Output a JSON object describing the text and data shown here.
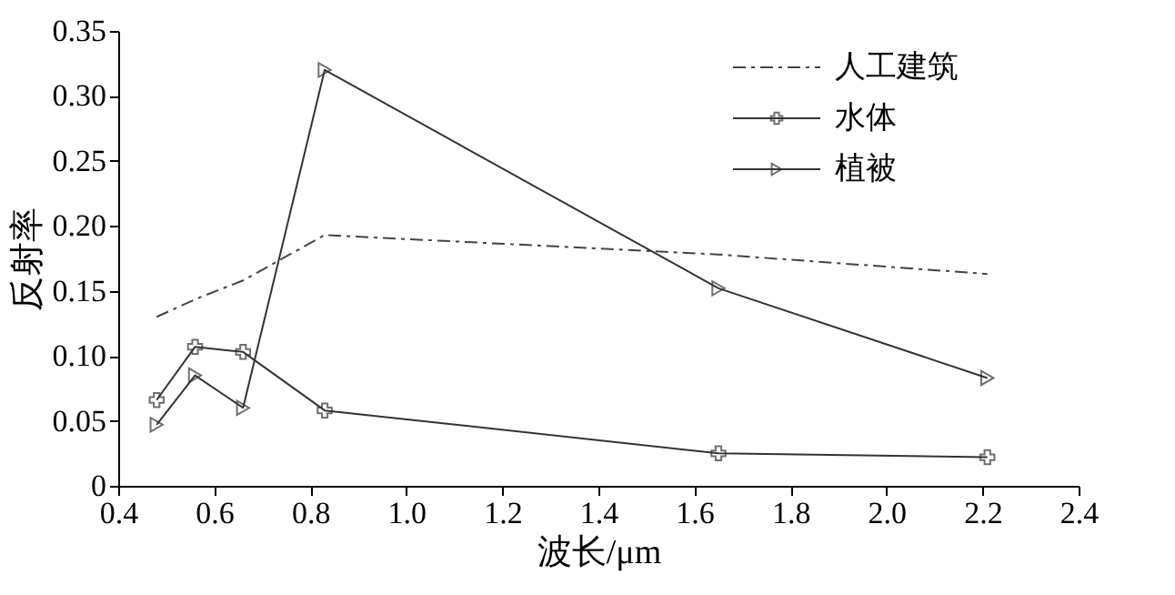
{
  "chart_data": {
    "type": "line",
    "xlabel": "波长/μm",
    "ylabel": "反射率",
    "xlim": [
      0.4,
      2.4
    ],
    "xticks": [
      {
        "value": 0.4,
        "label": "0.4"
      },
      {
        "value": 0.6,
        "label": "0.6"
      },
      {
        "value": 0.8,
        "label": "0.8"
      },
      {
        "value": 1.0,
        "label": "1.0"
      },
      {
        "value": 1.2,
        "label": "1.2"
      },
      {
        "value": 1.4,
        "label": "1.4"
      },
      {
        "value": 1.6,
        "label": "1.6"
      },
      {
        "value": 1.8,
        "label": "1.8"
      },
      {
        "value": 2.0,
        "label": "2.0"
      },
      {
        "value": 2.2,
        "label": "2.2"
      },
      {
        "value": 2.4,
        "label": "2.4"
      }
    ],
    "ylim": [
      0,
      0.35
    ],
    "yticks": [
      0,
      {
        "value": 0.05,
        "label": "0.05"
      },
      {
        "value": 0.1,
        "label": "0.10"
      },
      {
        "value": 0.15,
        "label": "0.15"
      },
      {
        "value": 0.2,
        "label": "0.20"
      },
      {
        "value": 0.25,
        "label": "0.25"
      },
      {
        "value": 0.3,
        "label": "0.30"
      },
      {
        "value": 0.35,
        "label": "0.35"
      }
    ],
    "grid": false,
    "legend": "top right",
    "series": [
      {
        "name": "人工建筑",
        "color": "#444444",
        "line_style": "dashdot",
        "marker": "none",
        "x": [
          0.48,
          0.57,
          0.66,
          0.83,
          1.65,
          2.21
        ],
        "values": [
          0.13,
          0.145,
          0.158,
          0.193,
          0.178,
          0.163
        ]
      },
      {
        "name": "水体",
        "color": "#333333",
        "line_style": "solid",
        "marker": "cross",
        "x": [
          0.48,
          0.56,
          0.66,
          0.83,
          1.65,
          2.21
        ],
        "values": [
          0.066,
          0.107,
          0.103,
          0.058,
          0.025,
          0.022
        ]
      },
      {
        "name": "植被",
        "color": "#333333",
        "line_style": "solid",
        "marker": "triangle",
        "x": [
          0.48,
          0.56,
          0.66,
          0.83,
          1.65,
          2.21
        ],
        "values": [
          0.047,
          0.085,
          0.06,
          0.32,
          0.152,
          0.083
        ]
      }
    ]
  }
}
